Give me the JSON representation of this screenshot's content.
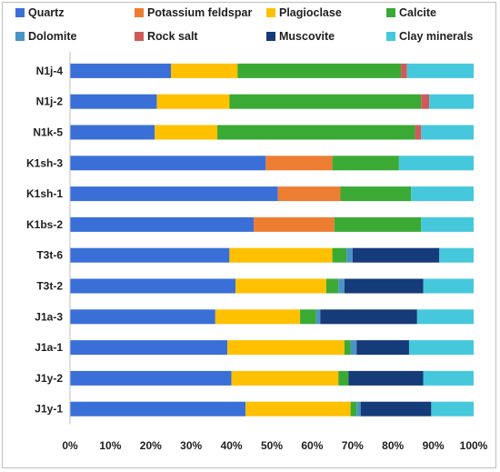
{
  "chart_data": {
    "type": "bar",
    "orientation": "horizontal",
    "stacked": "percent",
    "title": "",
    "xlabel": "",
    "ylabel": "",
    "xlim": [
      0,
      100
    ],
    "x_ticks": [
      "0%",
      "10%",
      "20%",
      "30%",
      "40%",
      "50%",
      "60%",
      "70%",
      "80%",
      "90%",
      "100%"
    ],
    "grid": false,
    "legend_position": "top",
    "categories": [
      "N1j-4",
      "N1j-2",
      "N1k-5",
      "K1sh-3",
      "K1sh-1",
      "K1bs-2",
      "T3t-6",
      "T3t-2",
      "J1a-3",
      "J1a-1",
      "J1y-2",
      "J1y-1"
    ],
    "series": [
      {
        "name": "Quartz",
        "color": "#3a6fd8",
        "values": [
          25,
          21.5,
          21,
          48.5,
          51.5,
          45.5,
          39.5,
          41,
          36,
          39,
          40,
          43.5
        ]
      },
      {
        "name": "Potassium feldspar",
        "color": "#ed7d31",
        "values": [
          0,
          0,
          0,
          16.5,
          15.5,
          20,
          0,
          0,
          0,
          0,
          0,
          0
        ]
      },
      {
        "name": "Plagioclase",
        "color": "#ffc000",
        "values": [
          16.5,
          18,
          15.5,
          0,
          0,
          0,
          25.5,
          22.5,
          21,
          29,
          26.5,
          26
        ]
      },
      {
        "name": "Calcite",
        "color": "#3aaa35",
        "values": [
          40.5,
          47.5,
          49,
          16.5,
          17.5,
          21.5,
          3.5,
          3,
          4,
          1.5,
          2.5,
          1.5
        ]
      },
      {
        "name": "Dolomite",
        "color": "#4a94c4",
        "values": [
          0,
          0,
          0,
          0,
          0,
          0,
          1.5,
          1.5,
          1,
          1.5,
          0,
          1
        ]
      },
      {
        "name": "Rock salt",
        "color": "#d05a5a",
        "values": [
          1.5,
          2,
          1.5,
          0,
          0,
          0,
          0,
          0,
          0,
          0,
          0,
          0
        ]
      },
      {
        "name": "Muscovite",
        "color": "#153b7a",
        "values": [
          0,
          0,
          0,
          0,
          0,
          0,
          21.5,
          19.5,
          24,
          13,
          18.5,
          17.5
        ]
      },
      {
        "name": "Clay minerals",
        "color": "#45c8dc",
        "values": [
          16.5,
          11,
          13,
          18.5,
          15.5,
          13,
          8.5,
          12.5,
          14,
          16,
          12.5,
          10.5
        ]
      }
    ]
  }
}
